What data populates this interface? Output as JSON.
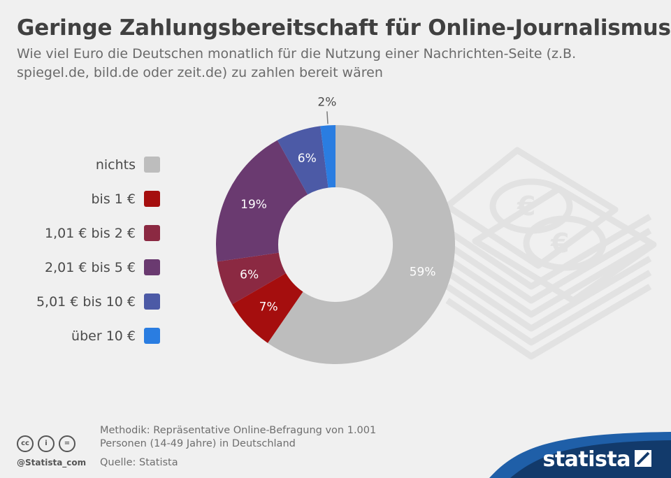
{
  "title": "Geringe Zahlungsbereitschaft für Online-Journalismus",
  "subtitle": "Wie viel Euro die Deutschen monatlich für die Nutzung einer Nachrichten-Seite (z.B. spiegel.de, bild.de oder zeit.de) zu zahlen bereit wären",
  "chart_data": {
    "type": "pie",
    "variant": "donut",
    "title": "Geringe Zahlungsbereitschaft für Online-Journalismus",
    "categories": [
      "nichts",
      "bis 1 €",
      "1,01 € bis 2 €",
      "2,01 € bis 5 €",
      "5,01 € bis 10 €",
      "über 10 €"
    ],
    "values": [
      59,
      7,
      6,
      19,
      6,
      2
    ],
    "labels": [
      "59%",
      "7%",
      "6%",
      "19%",
      "6%",
      "2%"
    ],
    "colors": [
      "#bdbdbd",
      "#a50e0e",
      "#8b2942",
      "#6a3a70",
      "#4c5aa6",
      "#2a7de1"
    ],
    "legend_placement": "left"
  },
  "footer": {
    "method_line1": "Methodik: Repräsentative Online-Befragung von 1.001",
    "method_line2": "Personen (14-49 Jahre) in Deutschland",
    "source": "Quelle: Statista",
    "handle": "@Statista_com",
    "brand": "statista"
  }
}
